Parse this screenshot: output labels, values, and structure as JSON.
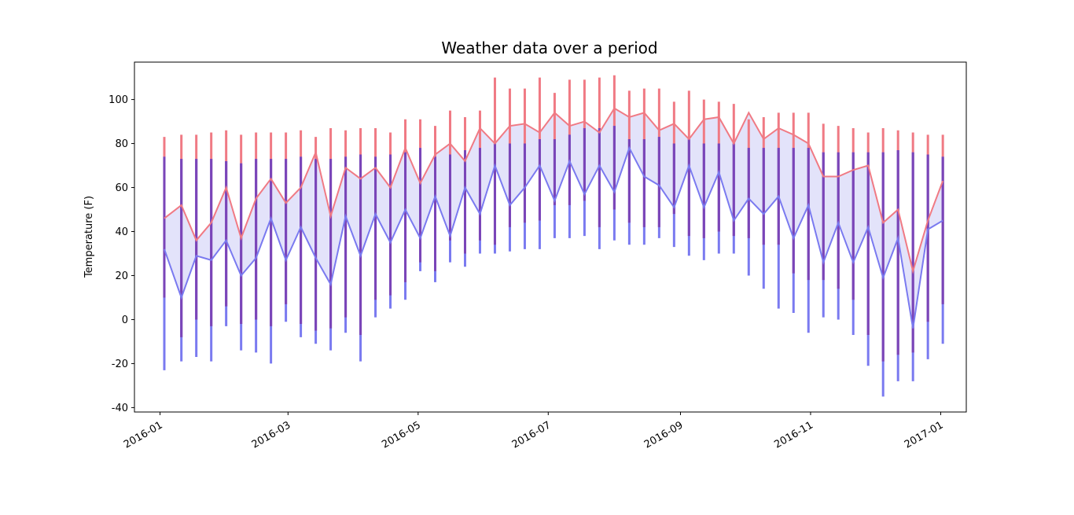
{
  "chart_data": {
    "type": "line",
    "title": "Weather data over a period",
    "xlabel": "",
    "ylabel": "Temperature (F)",
    "xlim": [
      "2015-12-20",
      "2017-01-13"
    ],
    "ylim": [
      -42,
      117
    ],
    "yticks": [
      -40,
      -20,
      0,
      20,
      40,
      60,
      80,
      100
    ],
    "xticks": [
      "2016-01-01",
      "2016-03-01",
      "2016-05-01",
      "2016-07-01",
      "2016-09-01",
      "2016-11-01",
      "2017-01-01"
    ],
    "xtick_labels": [
      "2016-01",
      "2016-03",
      "2016-05",
      "2016-07",
      "2016-09",
      "2016-11",
      "2017-01"
    ],
    "grid": false,
    "colors": {
      "high": "#f07a84",
      "low": "#7a7af0",
      "overlap": "#7a45b8",
      "fill": "#e3e3fa"
    },
    "series": [
      {
        "dates": [
          "2016-01-03",
          "2016-01-11",
          "2016-01-18",
          "2016-01-25",
          "2016-02-01",
          "2016-02-08",
          "2016-02-15",
          "2016-02-22",
          "2016-02-29",
          "2016-03-07",
          "2016-03-14",
          "2016-03-21",
          "2016-03-28",
          "2016-04-04",
          "2016-04-11",
          "2016-04-18",
          "2016-04-25",
          "2016-05-02",
          "2016-05-09",
          "2016-05-16",
          "2016-05-23",
          "2016-05-30",
          "2016-06-06",
          "2016-06-13",
          "2016-06-20",
          "2016-06-27",
          "2016-07-04",
          "2016-07-11",
          "2016-07-18",
          "2016-07-25",
          "2016-08-01",
          "2016-08-08",
          "2016-08-15",
          "2016-08-22",
          "2016-08-29",
          "2016-09-05",
          "2016-09-12",
          "2016-09-19",
          "2016-09-26",
          "2016-10-03",
          "2016-10-10",
          "2016-10-17",
          "2016-10-24",
          "2016-10-31",
          "2016-11-07",
          "2016-11-14",
          "2016-11-21",
          "2016-11-28",
          "2016-12-05",
          "2016-12-12",
          "2016-12-19",
          "2016-12-26",
          "2017-01-02"
        ],
        "high_max": [
          83,
          84,
          84,
          85,
          86,
          84,
          85,
          85,
          85,
          86,
          83,
          87,
          86,
          87,
          87,
          85,
          91,
          91,
          88,
          95,
          92,
          95,
          110,
          105,
          105,
          110,
          103,
          109,
          109,
          110,
          111,
          104,
          105,
          105,
          99,
          104,
          100,
          99,
          98,
          91,
          92,
          94,
          94,
          94,
          89,
          88,
          87,
          85,
          87,
          86,
          85,
          84,
          84
        ],
        "high_min": [
          10,
          -8,
          0,
          -3,
          6,
          -2,
          0,
          -3,
          7,
          -2,
          -5,
          -4,
          1,
          -7,
          9,
          11,
          17,
          26,
          22,
          36,
          30,
          36,
          34,
          42,
          44,
          45,
          52,
          52,
          54,
          42,
          50,
          44,
          42,
          42,
          48,
          38,
          37,
          40,
          38,
          37,
          34,
          34,
          21,
          18,
          18,
          14,
          9,
          -7,
          -19,
          -16,
          -15,
          -1,
          7
        ],
        "high_line": [
          46,
          52,
          36,
          44,
          60,
          37,
          55,
          64,
          53,
          60,
          76,
          47,
          69,
          64,
          69,
          60,
          78,
          62,
          75,
          80,
          72,
          87,
          80,
          88,
          89,
          85,
          94,
          88,
          90,
          85,
          96,
          92,
          94,
          86,
          89,
          82,
          91,
          92,
          80,
          94,
          82,
          87,
          84,
          80,
          65,
          65,
          68,
          70,
          44,
          50,
          22,
          45,
          63
        ],
        "low_max": [
          74,
          73,
          73,
          73,
          72,
          71,
          73,
          73,
          73,
          74,
          73,
          73,
          74,
          75,
          74,
          75,
          76,
          78,
          74,
          75,
          77,
          78,
          80,
          80,
          80,
          82,
          82,
          84,
          87,
          87,
          88,
          82,
          82,
          83,
          80,
          82,
          80,
          80,
          80,
          78,
          78,
          78,
          78,
          78,
          76,
          76,
          76,
          76,
          76,
          77,
          76,
          75,
          74
        ],
        "low_min": [
          -23,
          -19,
          -17,
          -19,
          -3,
          -14,
          -15,
          -20,
          -1,
          -8,
          -11,
          -14,
          -6,
          -19,
          1,
          5,
          9,
          22,
          17,
          26,
          24,
          30,
          30,
          31,
          32,
          32,
          37,
          37,
          38,
          32,
          36,
          34,
          34,
          37,
          33,
          29,
          27,
          30,
          30,
          20,
          14,
          5,
          3,
          -6,
          1,
          0,
          -7,
          -21,
          -35,
          -28,
          -28,
          -18,
          -11
        ],
        "low_line": [
          32,
          10,
          29,
          27,
          36,
          20,
          28,
          46,
          27,
          42,
          28,
          16,
          47,
          29,
          48,
          35,
          50,
          37,
          56,
          38,
          60,
          48,
          70,
          52,
          60,
          70,
          54,
          72,
          57,
          70,
          58,
          78,
          65,
          61,
          51,
          70,
          51,
          67,
          45,
          55,
          48,
          56,
          37,
          52,
          26,
          44,
          26,
          42,
          19,
          37,
          -4,
          41,
          45
        ]
      }
    ]
  }
}
